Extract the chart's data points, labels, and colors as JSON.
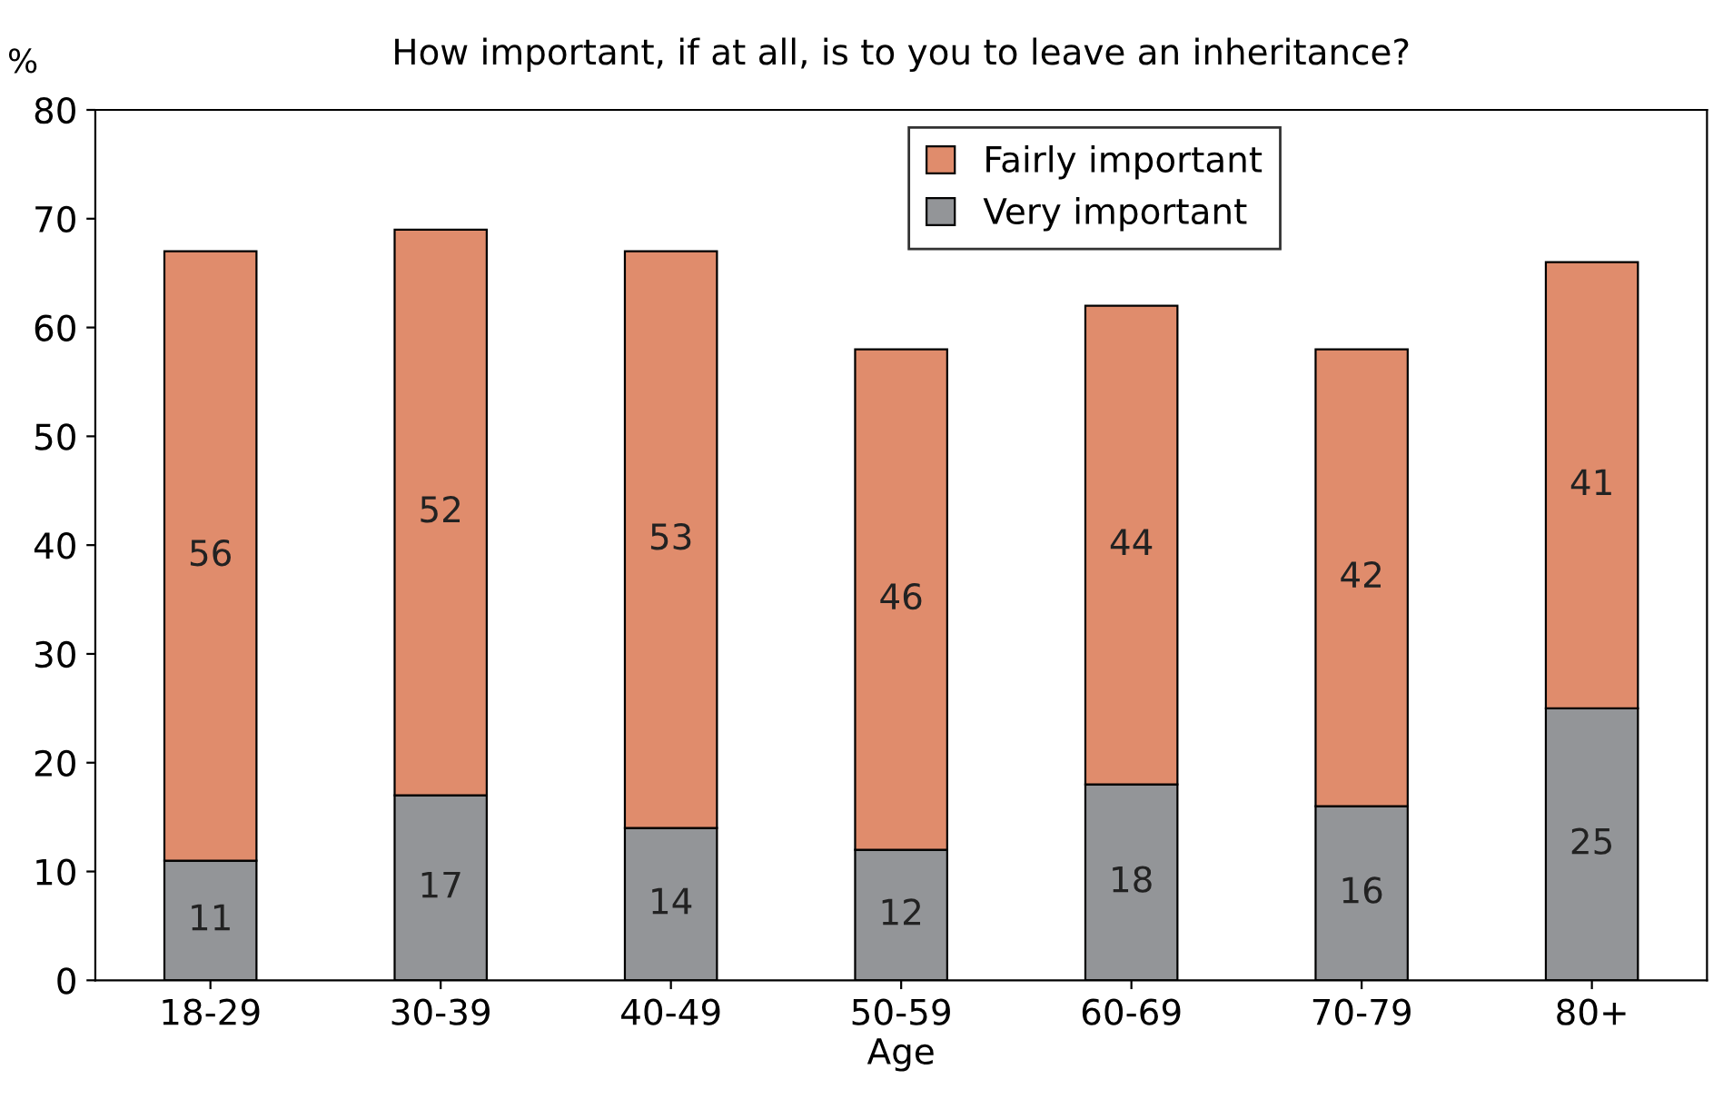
{
  "chart_data": {
    "type": "bar",
    "title": "How important, if at all, is to you to leave an inheritance?",
    "xlabel": "Age",
    "ylabel": "%",
    "categories": [
      "18-29",
      "30-39",
      "40-49",
      "50-59",
      "60-69",
      "70-79",
      "80+"
    ],
    "stacked": true,
    "series": [
      {
        "name": "Very important",
        "color": "#939598",
        "values": [
          11,
          17,
          14,
          12,
          18,
          16,
          25
        ]
      },
      {
        "name": "Fairly important",
        "color": "#e08c6c",
        "values": [
          56,
          52,
          53,
          46,
          44,
          42,
          41
        ]
      }
    ],
    "ylim": [
      0,
      80
    ],
    "yticks": [
      0,
      10,
      20,
      30,
      40,
      50,
      60,
      70,
      80
    ],
    "data_labels": true,
    "grid": false,
    "legend": "top"
  }
}
